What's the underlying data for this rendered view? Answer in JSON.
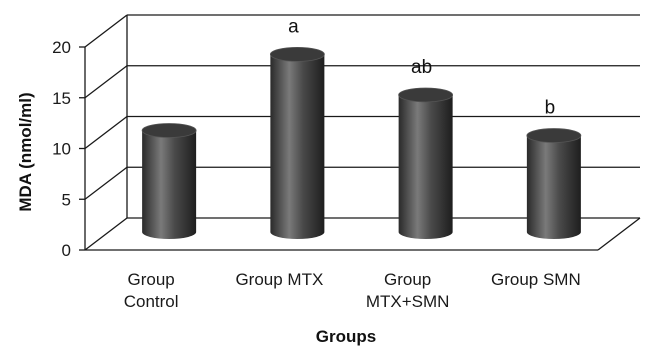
{
  "chart_data": {
    "type": "bar",
    "style": "3d-cylinder",
    "categories": [
      [
        "Group",
        "Control"
      ],
      [
        "Group MTX"
      ],
      [
        "Group",
        "MTX+SMN"
      ],
      [
        "Group SMN"
      ]
    ],
    "values": [
      10,
      17.5,
      13.5,
      9.5
    ],
    "annotations": [
      "",
      "a",
      "ab",
      "b"
    ],
    "xlabel": "Groups",
    "ylabel": "MDA (nmol/ml)",
    "ylim": [
      0,
      20
    ],
    "yticks": [
      0,
      5,
      10,
      15,
      20
    ],
    "grid": true,
    "legend": "none",
    "colors": {
      "bar": "#3a3a3a",
      "bar_highlight": "#8a8a8a",
      "grid": "#1a1a1a"
    }
  }
}
